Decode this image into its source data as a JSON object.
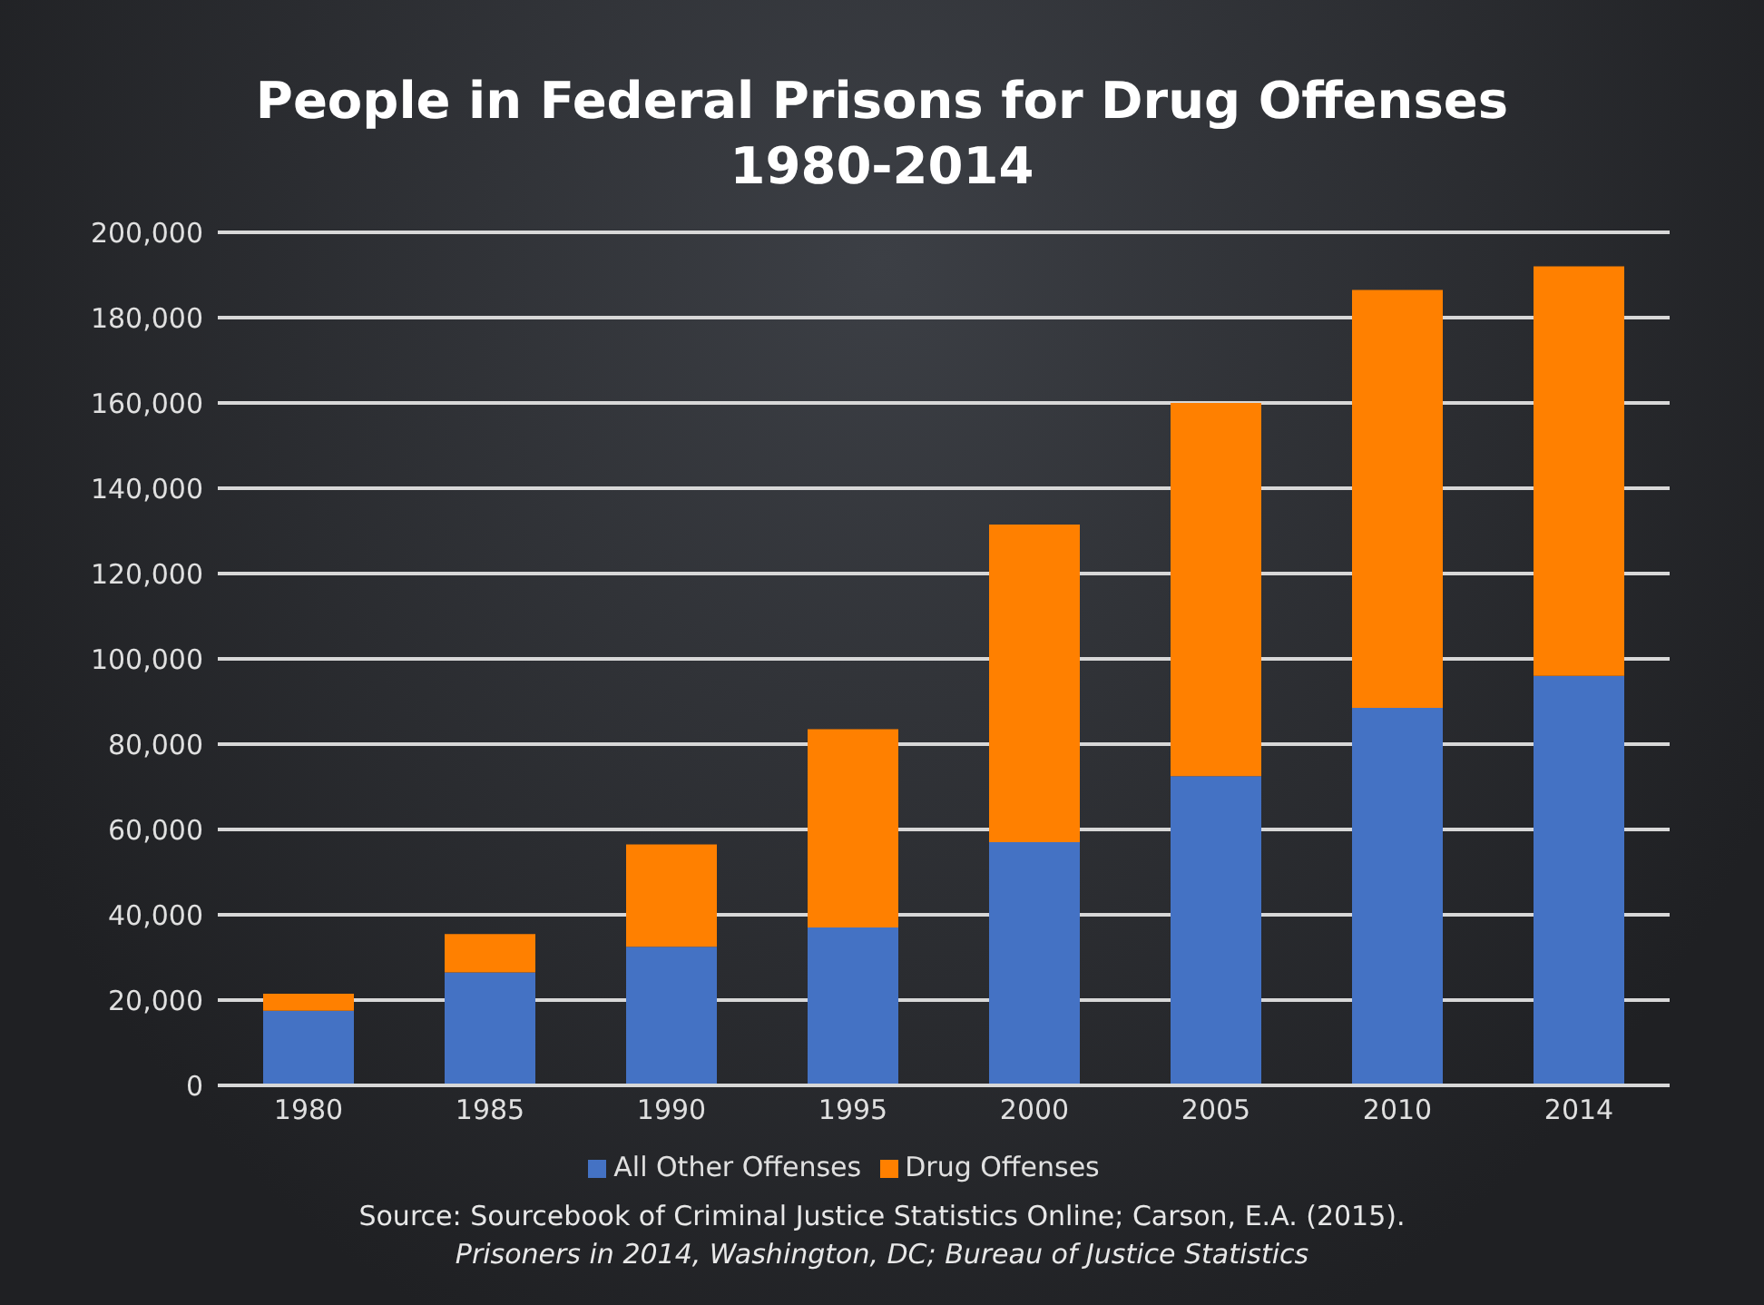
{
  "chart_data": {
    "type": "bar",
    "title": "People in Federal Prisons for Drug Offenses",
    "subtitle": "1980-2014",
    "categories": [
      "1980",
      "1985",
      "1990",
      "1995",
      "2000",
      "2005",
      "2010",
      "2014"
    ],
    "series": [
      {
        "name": "All Other Offenses",
        "color": "#4472c4",
        "values": [
          17500,
          26500,
          32500,
          37000,
          57000,
          72500,
          88500,
          96000
        ]
      },
      {
        "name": "Drug Offenses",
        "color": "#ff8000",
        "values": [
          4000,
          9000,
          24000,
          46500,
          74500,
          87500,
          98000,
          96000
        ]
      }
    ],
    "stacked": true,
    "ylim": [
      0,
      200000
    ],
    "yticks": [
      0,
      {
        "value": 20000,
        "label": "20,000"
      },
      {
        "value": 40000,
        "label": "40,000"
      },
      {
        "value": 60000,
        "label": "60,000"
      },
      {
        "value": 80000,
        "label": "80,000"
      },
      {
        "value": 100000,
        "label": "100,000"
      },
      {
        "value": 120000,
        "label": "120,000"
      },
      {
        "value": 140000,
        "label": "140,000"
      },
      {
        "value": 160000,
        "label": "160,000"
      },
      {
        "value": 180000,
        "label": "180,000"
      },
      {
        "value": 200000,
        "label": "200,000"
      }
    ],
    "grid": "y",
    "legend": "bottom",
    "annotations": [
      "Source: Sourcebook of Criminal Justice Statistics Online; Carson, E.A. (2015).",
      "Prisoners in 2014, Washington, DC; Bureau of Justice Statistics"
    ]
  }
}
